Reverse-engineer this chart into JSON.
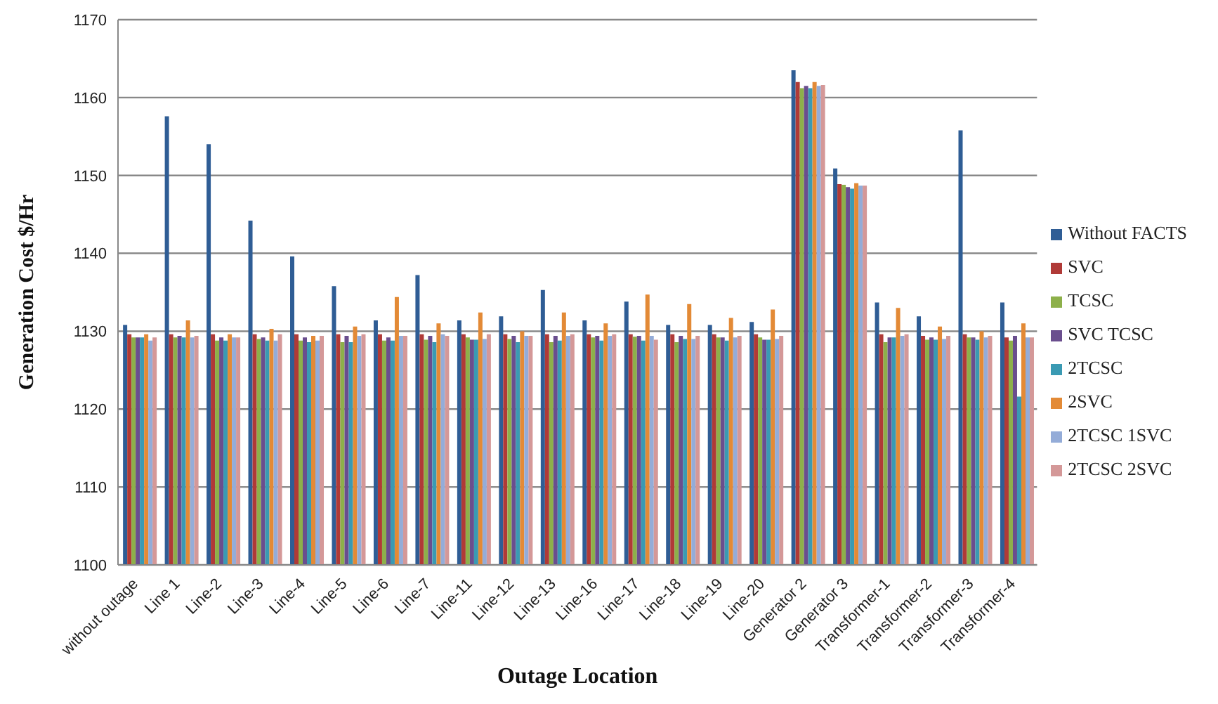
{
  "chart_data": {
    "type": "bar",
    "xlabel": "Outage Location",
    "ylabel": "Generation Cost $/Hr",
    "categories": [
      "without outage",
      "Line 1",
      "Line-2",
      "Line-3",
      "Line-4",
      "Line-5",
      "Line-6",
      "Line-7",
      "Line-11",
      "Line-12",
      "Line-13",
      "Line-16",
      "Line-17",
      "Line-18",
      "Line-19",
      "Line-20",
      "Generator 2",
      "Generator 3",
      "Transformer-1",
      "Transformer-2",
      "Transformer-3",
      "Transformer-4"
    ],
    "series": [
      {
        "name": "Without FACTS",
        "color": "#2f5d95",
        "values": [
          1130.8,
          1157.6,
          1154,
          1144.2,
          1139.6,
          1135.8,
          1131.4,
          1137.2,
          1131.4,
          1131.9,
          1135.3,
          1131.4,
          1133.8,
          1130.8,
          1130.8,
          1131.2,
          1163.5,
          1150.9,
          1133.7,
          1131.9,
          1155.8,
          1133.7
        ]
      },
      {
        "name": "SVC",
        "color": "#b03a37",
        "values": [
          1129.6,
          1129.6,
          1129.6,
          1129.6,
          1129.6,
          1129.6,
          1129.6,
          1129.6,
          1129.6,
          1129.6,
          1129.6,
          1129.6,
          1129.6,
          1129.6,
          1129.6,
          1129.6,
          1162,
          1148.9,
          1129.6,
          1129.4,
          1129.6,
          1129.2
        ]
      },
      {
        "name": "TCSC",
        "color": "#8db04a",
        "values": [
          1129.2,
          1129.2,
          1128.8,
          1129,
          1128.8,
          1128.6,
          1128.8,
          1128.9,
          1129.2,
          1129,
          1128.6,
          1129.2,
          1129.3,
          1128.6,
          1129.2,
          1129.2,
          1161.2,
          1148.8,
          1128.6,
          1128.9,
          1129.2,
          1128.8
        ]
      },
      {
        "name": "SVC TCSC",
        "color": "#6a4e8e",
        "values": [
          1129.2,
          1129.4,
          1129.2,
          1129.2,
          1129.2,
          1129.4,
          1129.2,
          1129.4,
          1128.9,
          1129.4,
          1129.4,
          1129.4,
          1129.4,
          1129.4,
          1129.2,
          1128.9,
          1161.5,
          1148.5,
          1129.2,
          1129.2,
          1129.2,
          1129.4
        ]
      },
      {
        "name": "2TCSC",
        "color": "#3a9ab3",
        "values": [
          1129.2,
          1129.2,
          1128.8,
          1128.8,
          1128.6,
          1128.6,
          1128.8,
          1128.6,
          1128.9,
          1128.6,
          1128.8,
          1128.8,
          1128.8,
          1129,
          1128.8,
          1128.9,
          1161.2,
          1148.3,
          1129.2,
          1128.9,
          1128.9,
          1121.6
        ]
      },
      {
        "name": "2SVC",
        "color": "#e38a36",
        "values": [
          1129.6,
          1131.4,
          1129.6,
          1130.3,
          1129.4,
          1130.6,
          1134.4,
          1131,
          1132.4,
          1130,
          1132.4,
          1131,
          1134.7,
          1133.5,
          1131.7,
          1132.8,
          1162,
          1149,
          1133,
          1130.6,
          1130,
          1131
        ]
      },
      {
        "name": "2TCSC 1SVC",
        "color": "#94acd8",
        "values": [
          1128.8,
          1129.2,
          1129.2,
          1128.8,
          1128.8,
          1129.4,
          1129.4,
          1129.6,
          1129,
          1129.4,
          1129.4,
          1129.4,
          1129.4,
          1129,
          1129.2,
          1129,
          1161.5,
          1148.7,
          1129.4,
          1129,
          1129.2,
          1129.2
        ]
      },
      {
        "name": "2TCSC 2SVC",
        "color": "#d49898",
        "values": [
          1129.2,
          1129.4,
          1129.2,
          1129.6,
          1129.4,
          1129.6,
          1129.4,
          1129.4,
          1129.6,
          1129.4,
          1129.6,
          1129.6,
          1128.9,
          1129.4,
          1129.4,
          1129.4,
          1161.6,
          1148.7,
          1129.6,
          1129.4,
          1129.4,
          1129.2
        ]
      }
    ],
    "ylim": [
      1100,
      1170
    ],
    "yticks": [
      1100,
      1110,
      1120,
      1130,
      1140,
      1150,
      1160,
      1170
    ],
    "grid": "y",
    "legend": "right"
  }
}
